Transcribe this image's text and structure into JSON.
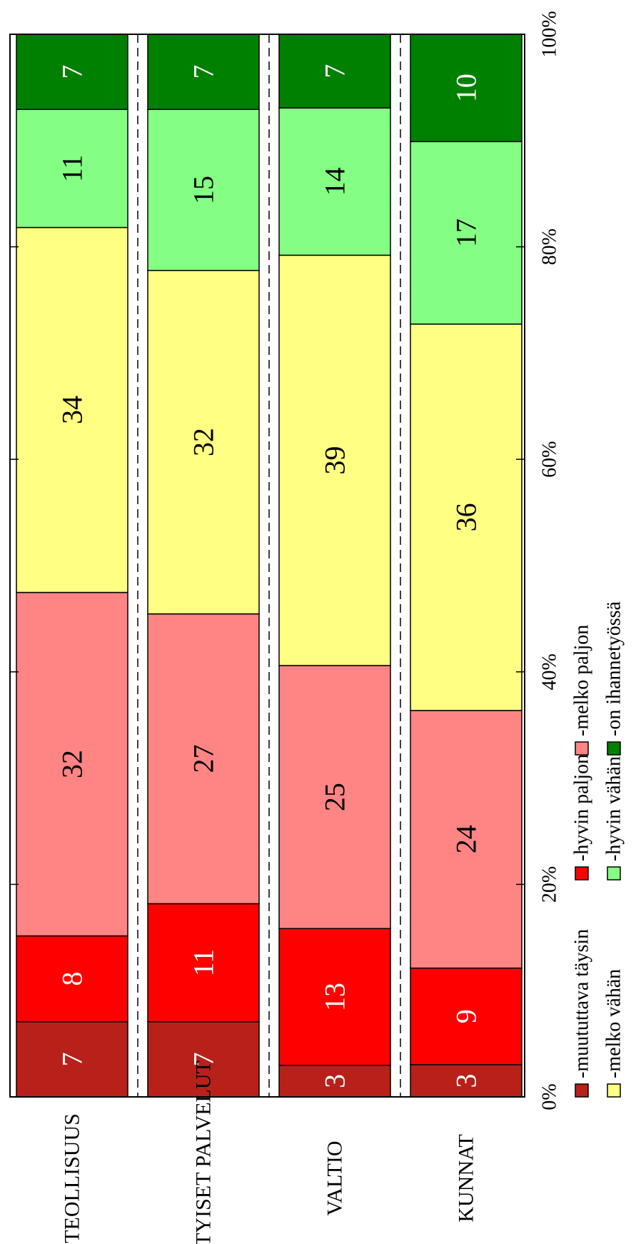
{
  "chart_data": {
    "type": "bar",
    "stacked": true,
    "percent": true,
    "orientation": "rotated-90-ccw",
    "categories": [
      "TEOLLISUUS",
      "YKSITYISET PALVELUT",
      "VALTIO",
      "KUNNAT"
    ],
    "series": [
      {
        "name": "-muututtava täysin",
        "color": "#b8211a",
        "label_color": "#ffffff",
        "values": [
          7,
          7,
          3,
          3
        ]
      },
      {
        "name": "-hyvin paljon",
        "color": "#ff0000",
        "label_color": "#ffffff",
        "values": [
          8,
          11,
          13,
          9
        ]
      },
      {
        "name": "-melko paljon",
        "color": "#ff8484",
        "label_color": "#000000",
        "values": [
          32,
          27,
          25,
          24
        ]
      },
      {
        "name": "-melko vähän",
        "color": "#ffff84",
        "label_color": "#000000",
        "values": [
          34,
          32,
          39,
          36
        ]
      },
      {
        "name": "-hyvin vähän",
        "color": "#84ff84",
        "label_color": "#000000",
        "values": [
          11,
          15,
          14,
          17
        ]
      },
      {
        "name": "-on ihannetyössä",
        "color": "#008000",
        "label_color": "#ffffff",
        "values": [
          7,
          7,
          7,
          10
        ]
      }
    ],
    "value_axis": {
      "range": [
        0,
        100
      ],
      "ticks": [
        "0%",
        "20%",
        "40%",
        "60%",
        "80%",
        "100%"
      ]
    },
    "grid": "dashed separators between categories",
    "legend": "bottom, two rows"
  }
}
